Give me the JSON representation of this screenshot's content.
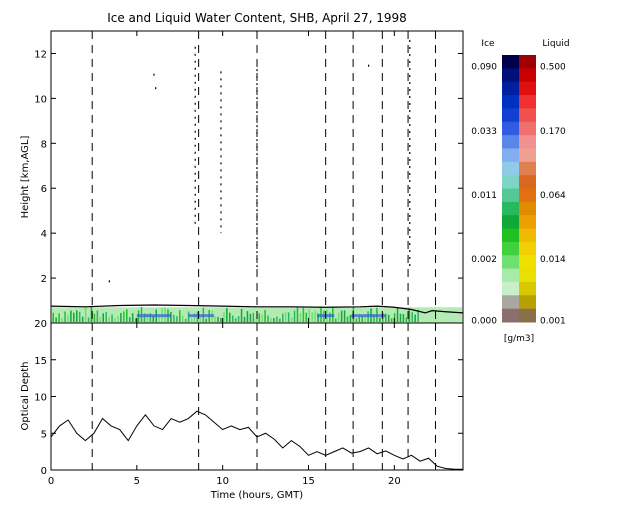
{
  "chart_data": [
    {
      "type": "heatmap",
      "title": "Ice and Liquid Water Content, SHB, April 27, 1998",
      "xlabel": "",
      "ylabel": "Height [km,AGL]",
      "xlim": [
        0,
        24
      ],
      "ylim": [
        0,
        13
      ],
      "x_ticks": [
        0,
        5,
        10,
        15,
        20
      ],
      "y_ticks": [
        2,
        4,
        6,
        8,
        10,
        12
      ],
      "dashed_lines_hours": [
        2.4,
        8.6,
        12.0,
        16.0,
        17.6,
        19.3,
        20.8,
        22.4
      ],
      "cloud_layer": {
        "base_km": 0.0,
        "top_km": 0.7,
        "x_range": [
          0,
          24
        ]
      },
      "cloud_top_trace": [
        [
          0,
          0.75
        ],
        [
          2,
          0.72
        ],
        [
          4,
          0.78
        ],
        [
          6,
          0.8
        ],
        [
          8,
          0.78
        ],
        [
          10,
          0.75
        ],
        [
          12,
          0.72
        ],
        [
          14,
          0.72
        ],
        [
          16,
          0.7
        ],
        [
          18,
          0.72
        ],
        [
          19,
          0.75
        ],
        [
          20,
          0.7
        ],
        [
          21,
          0.6
        ],
        [
          21.8,
          0.45
        ],
        [
          22.2,
          0.55
        ],
        [
          23,
          0.5
        ],
        [
          24,
          0.45
        ]
      ],
      "blue_segments_hours": [
        [
          5,
          7
        ],
        [
          8,
          9.5
        ],
        [
          15.5,
          16.5
        ],
        [
          17.5,
          19.5
        ]
      ],
      "columns": [
        {
          "x": 3.4,
          "y": [
            1.7,
            1.9
          ]
        },
        {
          "x": 6.0,
          "y": [
            10.9,
            11.1
          ]
        },
        {
          "x": 6.1,
          "y": [
            10.3,
            10.5
          ]
        },
        {
          "x": 8.4,
          "y": [
            4.3,
            12.3
          ]
        },
        {
          "x": 9.9,
          "y": [
            4.0,
            11.2
          ]
        },
        {
          "x": 12.0,
          "y": [
            2.4,
            11.3
          ]
        },
        {
          "x": 18.5,
          "y": [
            11.3,
            11.5
          ]
        },
        {
          "x": 20.9,
          "y": [
            2.5,
            12.6
          ]
        }
      ]
    },
    {
      "type": "line",
      "xlabel": "Time (hours, GMT)",
      "ylabel": "Optical Depth",
      "xlim": [
        0,
        24
      ],
      "ylim": [
        0,
        20
      ],
      "x_ticks": [
        0,
        5,
        10,
        15,
        20
      ],
      "y_ticks": [
        0,
        5,
        10,
        15,
        20
      ],
      "x": [
        0,
        0.5,
        1,
        1.5,
        2,
        2.5,
        3,
        3.5,
        4,
        4.5,
        5,
        5.5,
        6,
        6.5,
        7,
        7.5,
        8,
        8.5,
        9,
        9.5,
        10,
        10.5,
        11,
        11.5,
        12,
        12.5,
        13,
        13.5,
        14,
        14.5,
        15,
        15.5,
        16,
        16.5,
        17,
        17.5,
        18,
        18.5,
        19,
        19.5,
        20,
        20.5,
        21,
        21.5,
        22,
        22.5,
        23,
        23.5,
        24
      ],
      "y": [
        4.5,
        6,
        6.8,
        5,
        4,
        5,
        7,
        6,
        5.5,
        4,
        6,
        7.5,
        6,
        5.5,
        7,
        6.5,
        7,
        8,
        7.5,
        6.5,
        5.5,
        6,
        5.5,
        5.8,
        4.5,
        5,
        4.2,
        3,
        4,
        3.2,
        2,
        2.5,
        2,
        2.5,
        3,
        2.3,
        2.5,
        3,
        2.2,
        2.6,
        2,
        1.5,
        2,
        1.2,
        1.6,
        0.5,
        0.2,
        0.1,
        0.1
      ]
    }
  ],
  "colorbar": {
    "ice_label": "Ice",
    "liquid_label": "Liquid",
    "units_label": "[g/m3]",
    "ice_ticks": [
      "0.090",
      "0.033",
      "0.011",
      "0.002",
      "0.000"
    ],
    "liquid_ticks": [
      "0.500",
      "0.170",
      "0.064",
      "0.014",
      "0.001"
    ],
    "ice_colors": [
      "#00004a",
      "#00107a",
      "#0020a0",
      "#0030c0",
      "#1040d0",
      "#2f5ce0",
      "#5a86e8",
      "#82aef0",
      "#8fcbe8",
      "#7fd4c8",
      "#55c898",
      "#28b860",
      "#10a838",
      "#20c020",
      "#40d040",
      "#70e070",
      "#a8eba8",
      "#c8efc8",
      "#a8a8a0",
      "#8a6f6a"
    ],
    "liquid_colors": [
      "#a00000",
      "#c80000",
      "#e01010",
      "#f03030",
      "#f05050",
      "#f07070",
      "#f09090",
      "#f0a090",
      "#e08050",
      "#d86820",
      "#e07010",
      "#e08c00",
      "#eca000",
      "#f0b800",
      "#f0d000",
      "#f0e000",
      "#e8e000",
      "#d8c800",
      "#b8a000",
      "#8a7048"
    ]
  }
}
